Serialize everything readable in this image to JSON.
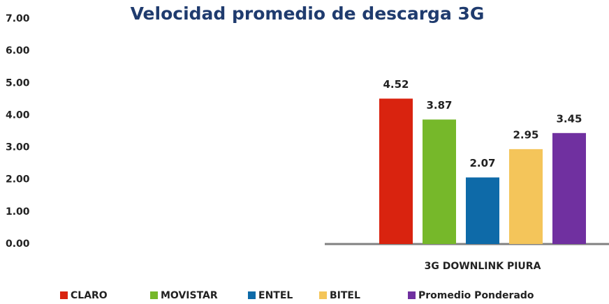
{
  "chart_data": {
    "type": "bar",
    "title": "Velocidad promedio de descarga 3G",
    "categories": [
      "3G DOWNLINK PIURA"
    ],
    "series": [
      {
        "name": "CLARO",
        "color": "#d9230f",
        "values": [
          4.52
        ]
      },
      {
        "name": "MOVISTAR",
        "color": "#76b82a",
        "values": [
          3.87
        ]
      },
      {
        "name": "ENTEL",
        "color": "#0e6aa8",
        "values": [
          2.07
        ]
      },
      {
        "name": "BITEL",
        "color": "#f4c55a",
        "values": [
          2.95
        ]
      },
      {
        "name": "Promedio Ponderado",
        "color": "#7030a0",
        "values": [
          3.45
        ]
      }
    ],
    "ylim": [
      0,
      7
    ],
    "yticks": [
      {
        "value": 0,
        "label": "0.00"
      },
      {
        "value": 1,
        "label": "1.00"
      },
      {
        "value": 2,
        "label": "2.00"
      },
      {
        "value": 3,
        "label": "3.00"
      },
      {
        "value": 4,
        "label": "4.00"
      },
      {
        "value": 5,
        "label": "5.00"
      },
      {
        "value": 6,
        "label": "6.00"
      },
      {
        "value": 7,
        "label": "7.00"
      }
    ],
    "grid": false,
    "legend": "bottom"
  }
}
